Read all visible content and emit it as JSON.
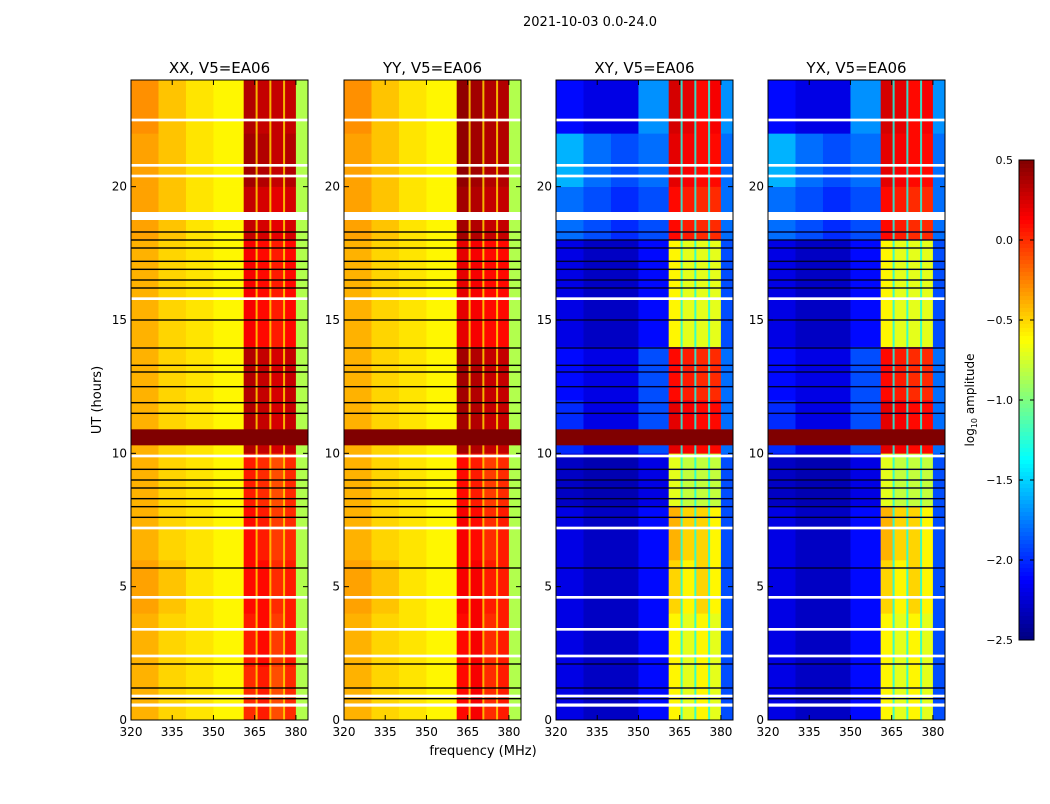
{
  "figure_title": "2021-10-03 0.0-24.0",
  "chart_data": {
    "type": "heatmap",
    "xlabel": "frequency (MHz)",
    "ylabel": "UT (hours)",
    "xlim": [
      320,
      384.4
    ],
    "ylim": [
      0,
      24
    ],
    "xticks": [
      320,
      335,
      350,
      365,
      380
    ],
    "yticks": [
      0,
      5,
      10,
      15,
      20
    ],
    "freq_bin_edges": [
      320,
      330,
      340,
      350,
      361,
      366,
      371,
      376,
      380,
      384.4
    ],
    "time_bin_edges": [
      0,
      2,
      4,
      6,
      8,
      10,
      12,
      14,
      16,
      18,
      20,
      22,
      24
    ],
    "subband_gaps_mhz": [
      365.7,
      370.7,
      375.7
    ],
    "flagged_white_hours": [
      [
        0.5,
        0.62
      ],
      [
        0.85,
        0.95
      ],
      [
        2.35,
        2.45
      ],
      [
        3.35,
        3.45
      ],
      [
        4.55,
        4.65
      ],
      [
        7.15,
        7.25
      ],
      [
        9.85,
        9.95
      ],
      [
        15.75,
        15.85
      ],
      [
        18.75,
        19.05
      ],
      [
        20.35,
        20.45
      ],
      [
        20.75,
        20.85
      ],
      [
        22.45,
        22.55
      ]
    ],
    "flagged_dark_hours": [
      0.8,
      1.2,
      2.1,
      3.4,
      5.7,
      7.6,
      8.0,
      8.3,
      8.7,
      9.0,
      9.4,
      11.5,
      11.9,
      12.5,
      13.05,
      13.3,
      13.95,
      15.0,
      16.2,
      16.5,
      16.9,
      17.2,
      17.7,
      18.0,
      18.3
    ],
    "saturated_band_hours": [
      10.3,
      10.9
    ],
    "colorbar": {
      "label_prefix": "log",
      "label_sub": "10",
      "label_suffix": " amplitude",
      "range": [
        -2.5,
        0.5
      ],
      "ticks": [
        "0.5",
        "0.0",
        "−0.5",
        "−1.0",
        "−1.5",
        "−2.0",
        "−2.5"
      ],
      "tick_values": [
        0.5,
        0.0,
        -0.5,
        -1.0,
        -1.5,
        -2.0,
        -2.5
      ],
      "colormap": "jet"
    },
    "panels": [
      {
        "title": "XX, V5=EA06",
        "gap_value": -0.5,
        "values": [
          [
            -0.4,
            -0.5,
            -0.55,
            -0.6,
            0.0,
            0.05,
            -0.1,
            0.0,
            -0.85
          ],
          [
            -0.4,
            -0.5,
            -0.55,
            -0.6,
            0.05,
            0.1,
            -0.05,
            0.05,
            -0.85
          ],
          [
            -0.35,
            -0.45,
            -0.55,
            -0.6,
            0.1,
            0.1,
            0.0,
            0.05,
            -0.85
          ],
          [
            -0.4,
            -0.5,
            -0.55,
            -0.6,
            0.1,
            0.05,
            -0.05,
            0.0,
            -0.85
          ],
          [
            -0.4,
            -0.5,
            -0.55,
            -0.6,
            0.05,
            0.0,
            -0.1,
            0.0,
            -0.85
          ],
          [
            -0.4,
            -0.5,
            -0.55,
            -0.6,
            0.35,
            0.3,
            0.25,
            0.3,
            -0.85
          ],
          [
            -0.4,
            -0.5,
            -0.55,
            -0.6,
            0.35,
            0.3,
            0.25,
            0.3,
            -0.85
          ],
          [
            -0.4,
            -0.5,
            -0.55,
            -0.6,
            0.15,
            0.1,
            0.05,
            0.1,
            -0.85
          ],
          [
            -0.4,
            -0.5,
            -0.55,
            -0.6,
            0.15,
            0.1,
            0.05,
            0.1,
            -0.85
          ],
          [
            -0.35,
            -0.45,
            -0.55,
            -0.6,
            0.3,
            0.25,
            0.2,
            0.25,
            -0.85
          ],
          [
            -0.35,
            -0.45,
            -0.55,
            -0.6,
            0.4,
            0.35,
            0.3,
            0.35,
            -0.85
          ],
          [
            -0.3,
            -0.45,
            -0.55,
            -0.6,
            0.35,
            0.3,
            0.3,
            0.3,
            -0.85
          ]
        ]
      },
      {
        "title": "YY, V5=EA06",
        "gap_value": -0.5,
        "values": [
          [
            -0.4,
            -0.5,
            -0.55,
            -0.6,
            0.1,
            0.15,
            0.0,
            0.05,
            -0.85
          ],
          [
            -0.4,
            -0.5,
            -0.55,
            -0.6,
            0.1,
            0.15,
            0.0,
            0.05,
            -0.85
          ],
          [
            -0.35,
            -0.45,
            -0.55,
            -0.6,
            0.15,
            0.15,
            0.05,
            0.05,
            -0.85
          ],
          [
            -0.4,
            -0.5,
            -0.55,
            -0.6,
            0.15,
            0.1,
            0.0,
            0.05,
            -0.85
          ],
          [
            -0.4,
            -0.5,
            -0.55,
            -0.6,
            0.1,
            0.05,
            -0.05,
            0.0,
            -0.85
          ],
          [
            -0.4,
            -0.5,
            -0.55,
            -0.6,
            0.4,
            0.35,
            0.3,
            0.3,
            -0.85
          ],
          [
            -0.4,
            -0.5,
            -0.55,
            -0.6,
            0.4,
            0.35,
            0.3,
            0.3,
            -0.85
          ],
          [
            -0.4,
            -0.5,
            -0.55,
            -0.6,
            0.2,
            0.15,
            0.1,
            0.1,
            -0.85
          ],
          [
            -0.4,
            -0.5,
            -0.55,
            -0.6,
            0.2,
            0.15,
            0.1,
            0.1,
            -0.85
          ],
          [
            -0.35,
            -0.45,
            -0.55,
            -0.6,
            0.4,
            0.35,
            0.3,
            0.3,
            -0.85
          ],
          [
            -0.35,
            -0.45,
            -0.55,
            -0.6,
            0.45,
            0.4,
            0.35,
            0.35,
            -0.85
          ],
          [
            -0.3,
            -0.45,
            -0.55,
            -0.6,
            0.45,
            0.4,
            0.35,
            0.35,
            -0.85
          ]
        ]
      },
      {
        "title": "XY, V5=EA06",
        "gap_value": -1.3,
        "values": [
          [
            -2.2,
            -2.3,
            -2.3,
            -2.1,
            -0.6,
            -0.7,
            -0.6,
            -0.7,
            -1.9
          ],
          [
            -2.2,
            -2.3,
            -2.3,
            -2.1,
            -0.6,
            -0.7,
            -0.6,
            -0.7,
            -1.9
          ],
          [
            -2.2,
            -2.3,
            -2.3,
            -2.1,
            -0.5,
            -0.6,
            -0.5,
            -0.6,
            -1.9
          ],
          [
            -2.2,
            -2.3,
            -2.3,
            -2.1,
            -0.4,
            -0.5,
            -0.5,
            -0.6,
            -1.9
          ],
          [
            -2.3,
            -2.35,
            -2.35,
            -2.2,
            -0.7,
            -0.8,
            -0.8,
            -0.8,
            -1.9
          ],
          [
            -2.0,
            -2.2,
            -2.2,
            -1.9,
            0.2,
            0.15,
            0.1,
            0.1,
            -1.8
          ],
          [
            -2.1,
            -2.2,
            -2.2,
            -1.9,
            0.1,
            0.05,
            0.0,
            0.0,
            -1.8
          ],
          [
            -2.2,
            -2.3,
            -2.3,
            -2.1,
            -0.6,
            -0.7,
            -0.7,
            -0.7,
            -1.9
          ],
          [
            -2.2,
            -2.3,
            -2.3,
            -2.1,
            -0.6,
            -0.7,
            -0.7,
            -0.7,
            -1.9
          ],
          [
            -1.8,
            -1.9,
            -2.0,
            -1.9,
            0.1,
            0.05,
            0.0,
            0.0,
            -1.8
          ],
          [
            -1.6,
            -1.8,
            -1.9,
            -1.8,
            0.2,
            0.15,
            0.1,
            0.1,
            -1.8
          ],
          [
            -2.1,
            -2.2,
            -2.2,
            -1.7,
            0.25,
            0.2,
            0.1,
            0.15,
            -1.7
          ]
        ]
      },
      {
        "title": "YX, V5=EA06",
        "gap_value": -1.3,
        "values": [
          [
            -2.2,
            -2.3,
            -2.3,
            -2.1,
            -0.6,
            -0.7,
            -0.6,
            -0.7,
            -1.9
          ],
          [
            -2.2,
            -2.3,
            -2.3,
            -2.1,
            -0.6,
            -0.7,
            -0.6,
            -0.7,
            -1.9
          ],
          [
            -2.2,
            -2.3,
            -2.3,
            -2.1,
            -0.5,
            -0.6,
            -0.5,
            -0.6,
            -1.9
          ],
          [
            -2.2,
            -2.3,
            -2.3,
            -2.1,
            -0.4,
            -0.5,
            -0.5,
            -0.6,
            -1.9
          ],
          [
            -2.3,
            -2.35,
            -2.35,
            -2.2,
            -0.7,
            -0.8,
            -0.8,
            -0.8,
            -1.9
          ],
          [
            -2.0,
            -2.2,
            -2.2,
            -1.9,
            0.2,
            0.15,
            0.1,
            0.1,
            -1.8
          ],
          [
            -2.1,
            -2.2,
            -2.2,
            -1.9,
            0.1,
            0.05,
            0.0,
            0.0,
            -1.8
          ],
          [
            -2.2,
            -2.3,
            -2.3,
            -2.1,
            -0.6,
            -0.7,
            -0.7,
            -0.7,
            -1.9
          ],
          [
            -2.2,
            -2.3,
            -2.3,
            -2.1,
            -0.6,
            -0.7,
            -0.7,
            -0.7,
            -1.9
          ],
          [
            -1.8,
            -1.9,
            -2.0,
            -1.9,
            0.1,
            0.05,
            0.0,
            0.0,
            -1.8
          ],
          [
            -1.6,
            -1.8,
            -1.9,
            -1.8,
            0.2,
            0.15,
            0.1,
            0.1,
            -1.8
          ],
          [
            -2.1,
            -2.2,
            -2.2,
            -1.7,
            0.25,
            0.2,
            0.1,
            0.15,
            -1.7
          ]
        ]
      }
    ]
  }
}
